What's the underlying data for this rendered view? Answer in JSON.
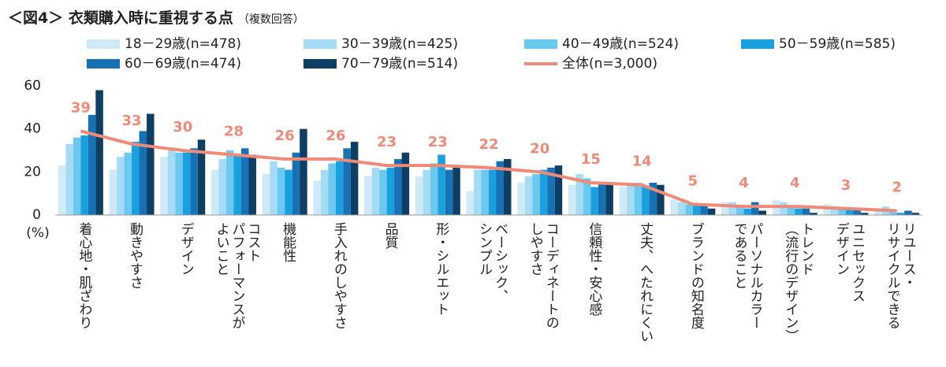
{
  "chart_data": {
    "type": "bar",
    "title": "＜図4＞ 衣類購入時に重視する点",
    "subtitle": "（複数回答）",
    "y_label": "(%)",
    "categories": [
      "着心地・肌ざわり",
      "動きやすさ",
      "デザイン",
      "コスト\nパフォーマンスが\nよいこと",
      "機能性",
      "手入れのしやすさ",
      "品質",
      "形・シルエット",
      "ベーシック、\nシンプル",
      "コーディネートの\nしやすさ",
      "信頼性・安心感",
      "丈夫、へたれにくい",
      "ブランドの知名度",
      "パーソナルカラー\nであること",
      "トレンド\n（流行のデザイン）",
      "ユニセックス\nデザイン",
      "リユース・\nリサイクルできる"
    ],
    "series": [
      {
        "name": "18－29歳(n=478)",
        "color": "#cfe9f7",
        "values": [
          23,
          21,
          27,
          21,
          19,
          16,
          18,
          18,
          11,
          15,
          14,
          13,
          7,
          6,
          7,
          5,
          2
        ]
      },
      {
        "name": "30－39歳(n=425)",
        "color": "#a6dbf5",
        "values": [
          33,
          27,
          30,
          26,
          25,
          21,
          22,
          21,
          21,
          18,
          19,
          15,
          6,
          6,
          6,
          4,
          4
        ]
      },
      {
        "name": "40－49歳(n=524)",
        "color": "#6bc9f0",
        "values": [
          36,
          29,
          29,
          30,
          22,
          24,
          21,
          24,
          21,
          19,
          17,
          15,
          5,
          4,
          4,
          3,
          2
        ]
      },
      {
        "name": "50－59歳(n=585)",
        "color": "#1a9fdf",
        "values": [
          37,
          34,
          29,
          28,
          21,
          25,
          22,
          28,
          21,
          21,
          13,
          13,
          5,
          3,
          3,
          3,
          1
        ]
      },
      {
        "name": "60－69歳(n=474)",
        "color": "#1672b4",
        "values": [
          46.5,
          39,
          31,
          31,
          29,
          31,
          26,
          21,
          25,
          22,
          15,
          15,
          5,
          6,
          3,
          3,
          2
        ]
      },
      {
        "name": "70－79歳(n=514)",
        "color": "#0d3e64",
        "values": [
          58,
          47,
          35,
          28,
          40,
          34,
          29,
          23,
          26,
          23,
          15,
          14,
          3,
          2,
          1,
          1,
          1
        ]
      },
      {
        "name": "全体(n=3,000)",
        "color": "#f08a78",
        "type": "line",
        "values": [
          39,
          33,
          30,
          28,
          26,
          26,
          23,
          23,
          22,
          20,
          15,
          14,
          5,
          4,
          4,
          3,
          2
        ]
      }
    ],
    "ylim": [
      0,
      60
    ],
    "yticks": [
      0,
      20,
      40,
      60
    ],
    "grid": false
  }
}
